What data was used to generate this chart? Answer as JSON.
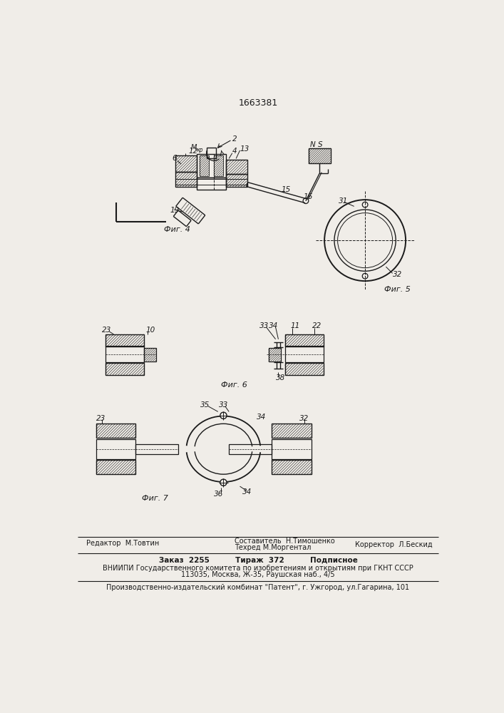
{
  "patent_number": "1663381",
  "bg_color": "#f0ede8",
  "line_color": "#1a1a1a",
  "fig4_label": "Фиг. 4",
  "fig5_label": "Фиг. 5",
  "fig6_label": "Фиг. 6",
  "fig7_label": "Фиг. 7",
  "footer_line1_left": "Редактор  М.Товтин",
  "footer_line1_mid1": "Составитель  Н.Тимошенко",
  "footer_line1_mid2": "Техред М.Моргентал",
  "footer_line1_right": "Корректор  Л.Бескид",
  "footer_line2": "Заказ  2255          Тираж  372          Подписное",
  "footer_line3": "ВНИИПИ Государственного комитета по изобретениям и открытиям при ГКНТ СССР",
  "footer_line4": "113035, Москва, Ж-35, Раушская наб., 4/5",
  "footer_line5": "Производственно-издательский комбинат \"Патент\", г. Ужгород, ул.Гагарина, 101"
}
